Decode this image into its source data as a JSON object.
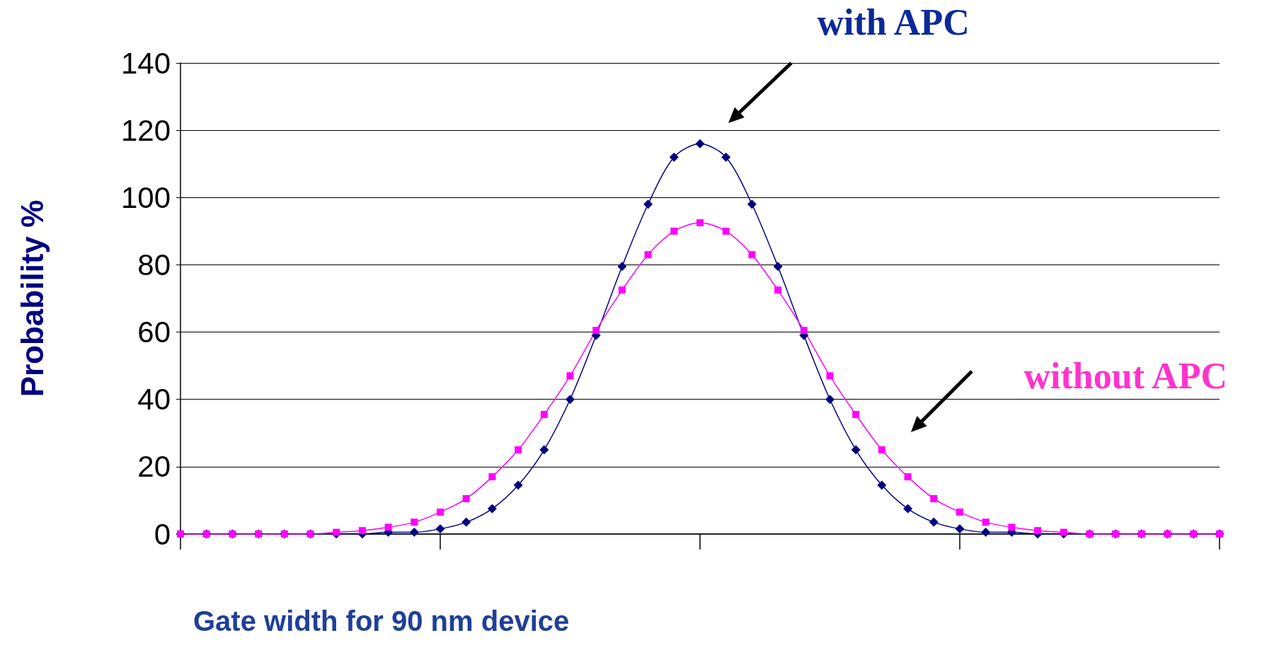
{
  "chart_data": {
    "type": "line",
    "xlabel": "Gate width for 90 nm device",
    "ylabel": "Probability %",
    "categories": [
      null,
      null,
      null,
      null,
      null,
      null,
      null,
      null,
      null,
      null,
      null,
      null,
      null,
      null,
      null,
      null,
      null,
      null,
      null,
      null,
      null,
      null,
      null,
      null,
      null,
      null,
      null,
      null,
      null,
      null,
      null,
      null,
      null,
      null,
      null,
      null,
      null,
      null,
      null,
      null,
      null
    ],
    "series": [
      {
        "color": "#000080",
        "marker": "diamond",
        "values": [
          0,
          0,
          0,
          0,
          0,
          0,
          0,
          0,
          0.5,
          0.5,
          1.5,
          3.5,
          7.5,
          14.5,
          25,
          40,
          59,
          79.5,
          98,
          112,
          116,
          112,
          98,
          79.5,
          59,
          40,
          25,
          14.5,
          7.5,
          3.5,
          1.5,
          0.5,
          0.5,
          0,
          0,
          0,
          0,
          0,
          0,
          0,
          0
        ]
      },
      {
        "color": "#ff00ff",
        "marker": "square",
        "values": [
          0,
          0,
          0,
          0,
          0,
          0,
          0.5,
          1,
          2,
          3.5,
          6.5,
          10.5,
          17,
          25,
          35.5,
          47,
          60.5,
          72.5,
          83,
          90,
          92.5,
          90,
          83,
          72.5,
          60.5,
          47,
          35.5,
          25,
          17,
          10.5,
          6.5,
          3.5,
          2,
          1,
          0.5,
          0,
          0,
          0,
          0,
          0,
          0
        ]
      }
    ],
    "annotations": [
      "with APC",
      "without APC"
    ],
    "ylim": [
      0,
      140
    ],
    "yticks": [
      0,
      20,
      40,
      60,
      80,
      100,
      120,
      140
    ],
    "grid": "y",
    "tick_labels": "y",
    "line_style": "solid"
  }
}
